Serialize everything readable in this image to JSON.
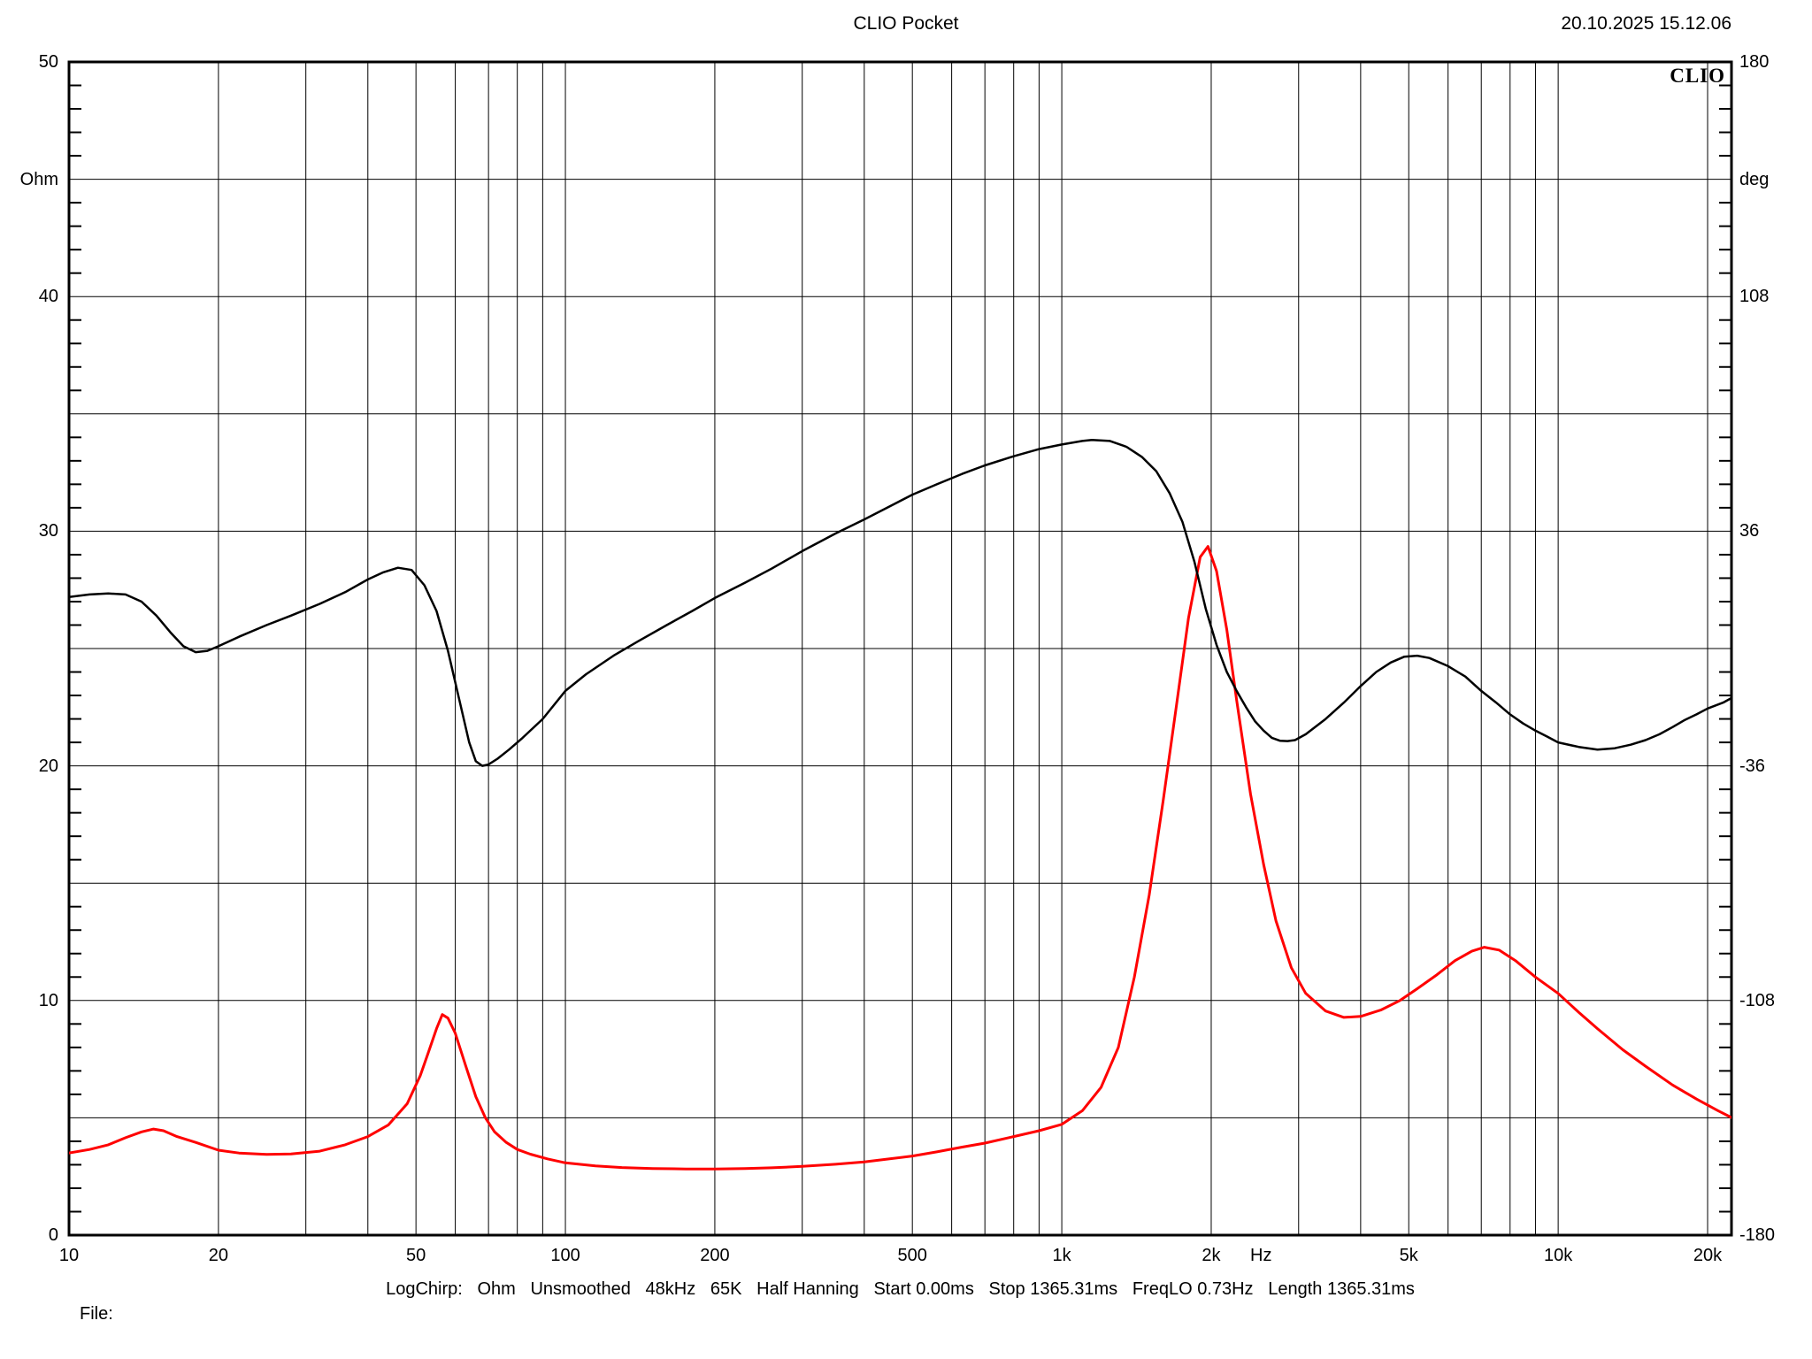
{
  "header": {
    "title": "CLIO Pocket",
    "timestamp": "20.10.2025 15.12.06"
  },
  "branding": {
    "logo_text": "CLIO"
  },
  "footer": {
    "file_label": "File:",
    "status_items": [
      "LogChirp:",
      "Ohm",
      "Unsmoothed",
      "48kHz",
      "65K",
      "Half Hanning",
      "Start 0.00ms",
      "Stop 1365.31ms",
      "FreqLO 0.73Hz",
      "Length 1365.31ms"
    ],
    "status_line": "LogChirp:   Ohm   Unsmoothed   48kHz   65K   Half Hanning   Start 0.00ms   Stop 1365.31ms   FreqLO 0.73Hz   Length 1365.31ms"
  },
  "chart_data": {
    "type": "line",
    "title": "CLIO Pocket",
    "grid": true,
    "legend": "none",
    "colors": {
      "impedance": "#ff0000",
      "phase": "#000000",
      "grid": "#000000",
      "frame": "#000000",
      "background": "#ffffff"
    },
    "axes": {
      "x": {
        "scale": "log",
        "unit": "Hz",
        "min": 10,
        "max": 22400,
        "unit_label_freq": 2520,
        "tick_labels": [
          [
            10,
            "10"
          ],
          [
            20,
            "20"
          ],
          [
            50,
            "50"
          ],
          [
            100,
            "100"
          ],
          [
            200,
            "200"
          ],
          [
            500,
            "500"
          ],
          [
            1000,
            "1k"
          ],
          [
            2000,
            "2k"
          ],
          [
            5000,
            "5k"
          ],
          [
            10000,
            "10k"
          ],
          [
            20000,
            "20k"
          ]
        ],
        "gridline_freqs": [
          20,
          30,
          40,
          50,
          60,
          70,
          80,
          90,
          100,
          200,
          300,
          400,
          500,
          600,
          700,
          800,
          900,
          1000,
          2000,
          3000,
          4000,
          5000,
          6000,
          7000,
          8000,
          9000,
          10000,
          20000
        ]
      },
      "y_left": {
        "unit": "Ohm",
        "min": 0,
        "max": 50,
        "gridline_step": 5,
        "minor_tick_step": 1,
        "unit_label_at": 45,
        "tick_labels": [
          [
            50,
            "50"
          ],
          [
            40,
            "40"
          ],
          [
            30,
            "30"
          ],
          [
            20,
            "20"
          ],
          [
            10,
            "10"
          ],
          [
            0,
            "0"
          ]
        ]
      },
      "y_right": {
        "unit": "deg",
        "min": -180,
        "max": 180,
        "gridline_step": 36,
        "minor_tick_step": 7.2,
        "unit_label_at": 144,
        "tick_labels": [
          [
            180,
            "180"
          ],
          [
            108,
            "108"
          ],
          [
            36,
            "36"
          ],
          [
            -36,
            "-36"
          ],
          [
            -108,
            "-108"
          ],
          [
            -180,
            "-180"
          ]
        ]
      }
    },
    "series": [
      {
        "name": "impedance-modulus",
        "axis": "left",
        "unit": "Ohm",
        "color": "#ff0000",
        "points": [
          [
            10,
            3.5
          ],
          [
            11,
            3.65
          ],
          [
            12,
            3.85
          ],
          [
            13,
            4.15
          ],
          [
            14,
            4.4
          ],
          [
            14.8,
            4.52
          ],
          [
            15.5,
            4.45
          ],
          [
            16.5,
            4.2
          ],
          [
            18,
            3.95
          ],
          [
            20,
            3.62
          ],
          [
            22,
            3.5
          ],
          [
            25,
            3.44
          ],
          [
            28,
            3.46
          ],
          [
            32,
            3.58
          ],
          [
            36,
            3.85
          ],
          [
            40,
            4.2
          ],
          [
            44,
            4.7
          ],
          [
            48,
            5.6
          ],
          [
            51,
            6.8
          ],
          [
            53,
            7.8
          ],
          [
            55,
            8.8
          ],
          [
            56.5,
            9.4
          ],
          [
            58,
            9.25
          ],
          [
            60,
            8.6
          ],
          [
            63,
            7.2
          ],
          [
            66,
            5.9
          ],
          [
            69,
            5.0
          ],
          [
            72,
            4.4
          ],
          [
            76,
            3.95
          ],
          [
            80,
            3.65
          ],
          [
            85,
            3.45
          ],
          [
            92,
            3.25
          ],
          [
            100,
            3.08
          ],
          [
            115,
            2.95
          ],
          [
            130,
            2.88
          ],
          [
            150,
            2.84
          ],
          [
            175,
            2.82
          ],
          [
            200,
            2.82
          ],
          [
            230,
            2.84
          ],
          [
            260,
            2.87
          ],
          [
            300,
            2.93
          ],
          [
            350,
            3.02
          ],
          [
            400,
            3.12
          ],
          [
            450,
            3.25
          ],
          [
            500,
            3.37
          ],
          [
            560,
            3.55
          ],
          [
            630,
            3.75
          ],
          [
            700,
            3.92
          ],
          [
            800,
            4.2
          ],
          [
            900,
            4.45
          ],
          [
            1000,
            4.72
          ],
          [
            1100,
            5.3
          ],
          [
            1200,
            6.3
          ],
          [
            1300,
            8.0
          ],
          [
            1400,
            11.0
          ],
          [
            1500,
            14.5
          ],
          [
            1600,
            18.5
          ],
          [
            1700,
            22.5
          ],
          [
            1800,
            26.3
          ],
          [
            1900,
            28.9
          ],
          [
            1970,
            29.35
          ],
          [
            2050,
            28.3
          ],
          [
            2150,
            25.8
          ],
          [
            2250,
            22.8
          ],
          [
            2400,
            18.8
          ],
          [
            2550,
            15.8
          ],
          [
            2700,
            13.4
          ],
          [
            2900,
            11.4
          ],
          [
            3100,
            10.3
          ],
          [
            3400,
            9.55
          ],
          [
            3700,
            9.28
          ],
          [
            4000,
            9.32
          ],
          [
            4400,
            9.6
          ],
          [
            4800,
            10.0
          ],
          [
            5200,
            10.5
          ],
          [
            5700,
            11.1
          ],
          [
            6200,
            11.7
          ],
          [
            6700,
            12.1
          ],
          [
            7100,
            12.27
          ],
          [
            7600,
            12.15
          ],
          [
            8200,
            11.7
          ],
          [
            9000,
            11.0
          ],
          [
            10000,
            10.3
          ],
          [
            11000,
            9.5
          ],
          [
            12000,
            8.8
          ],
          [
            13500,
            7.9
          ],
          [
            15000,
            7.2
          ],
          [
            17000,
            6.4
          ],
          [
            19000,
            5.8
          ],
          [
            21000,
            5.3
          ],
          [
            22400,
            5.0
          ]
        ]
      },
      {
        "name": "phase",
        "axis": "right",
        "unit": "deg",
        "color": "#000000",
        "points": [
          [
            10,
            15.8
          ],
          [
            11,
            16.6
          ],
          [
            12,
            16.9
          ],
          [
            13,
            16.6
          ],
          [
            14,
            14.4
          ],
          [
            15,
            10.1
          ],
          [
            16,
            5.0
          ],
          [
            17,
            0.7
          ],
          [
            18,
            -1.1
          ],
          [
            19,
            -0.7
          ],
          [
            20,
            0.7
          ],
          [
            22,
            3.6
          ],
          [
            25,
            7.2
          ],
          [
            28,
            10.1
          ],
          [
            32,
            13.7
          ],
          [
            36,
            17.3
          ],
          [
            40,
            21.2
          ],
          [
            43,
            23.4
          ],
          [
            46,
            24.8
          ],
          [
            49,
            24.1
          ],
          [
            52,
            19.4
          ],
          [
            55,
            11.5
          ],
          [
            58,
            -0.7
          ],
          [
            61,
            -15.1
          ],
          [
            64,
            -28.8
          ],
          [
            66,
            -34.6
          ],
          [
            68,
            -36.0
          ],
          [
            70,
            -35.6
          ],
          [
            73,
            -33.8
          ],
          [
            77,
            -31.0
          ],
          [
            82,
            -27.4
          ],
          [
            90,
            -21.6
          ],
          [
            100,
            -13.0
          ],
          [
            110,
            -7.9
          ],
          [
            125,
            -2.2
          ],
          [
            140,
            2.2
          ],
          [
            160,
            7.2
          ],
          [
            180,
            11.5
          ],
          [
            200,
            15.5
          ],
          [
            230,
            20.2
          ],
          [
            260,
            24.5
          ],
          [
            300,
            29.9
          ],
          [
            350,
            35.3
          ],
          [
            400,
            39.6
          ],
          [
            450,
            43.6
          ],
          [
            500,
            47.2
          ],
          [
            560,
            50.4
          ],
          [
            630,
            53.6
          ],
          [
            700,
            56.2
          ],
          [
            800,
            59.0
          ],
          [
            900,
            61.2
          ],
          [
            1000,
            62.6
          ],
          [
            1100,
            63.7
          ],
          [
            1150,
            64.0
          ],
          [
            1250,
            63.7
          ],
          [
            1350,
            61.9
          ],
          [
            1450,
            58.8
          ],
          [
            1550,
            54.4
          ],
          [
            1650,
            47.6
          ],
          [
            1750,
            38.9
          ],
          [
            1850,
            26.6
          ],
          [
            1950,
            12.2
          ],
          [
            2050,
            1.1
          ],
          [
            2150,
            -7.2
          ],
          [
            2250,
            -13.0
          ],
          [
            2350,
            -18.0
          ],
          [
            2450,
            -22.3
          ],
          [
            2550,
            -25.2
          ],
          [
            2650,
            -27.4
          ],
          [
            2750,
            -28.3
          ],
          [
            2850,
            -28.4
          ],
          [
            2950,
            -28.1
          ],
          [
            3100,
            -26.3
          ],
          [
            3400,
            -21.6
          ],
          [
            3700,
            -16.6
          ],
          [
            4000,
            -11.5
          ],
          [
            4300,
            -7.2
          ],
          [
            4600,
            -4.3
          ],
          [
            4900,
            -2.5
          ],
          [
            5200,
            -2.2
          ],
          [
            5500,
            -2.9
          ],
          [
            6000,
            -5.4
          ],
          [
            6500,
            -8.6
          ],
          [
            7000,
            -13.0
          ],
          [
            7500,
            -16.6
          ],
          [
            8000,
            -20.2
          ],
          [
            8500,
            -23.0
          ],
          [
            9000,
            -25.2
          ],
          [
            9500,
            -27.0
          ],
          [
            10000,
            -28.8
          ],
          [
            11000,
            -30.2
          ],
          [
            12000,
            -31.0
          ],
          [
            13000,
            -30.6
          ],
          [
            14000,
            -29.5
          ],
          [
            15000,
            -28.1
          ],
          [
            16000,
            -26.3
          ],
          [
            17000,
            -24.1
          ],
          [
            18000,
            -21.9
          ],
          [
            19000,
            -20.2
          ],
          [
            20000,
            -18.4
          ],
          [
            21500,
            -16.6
          ],
          [
            22400,
            -15.1
          ]
        ]
      }
    ]
  }
}
